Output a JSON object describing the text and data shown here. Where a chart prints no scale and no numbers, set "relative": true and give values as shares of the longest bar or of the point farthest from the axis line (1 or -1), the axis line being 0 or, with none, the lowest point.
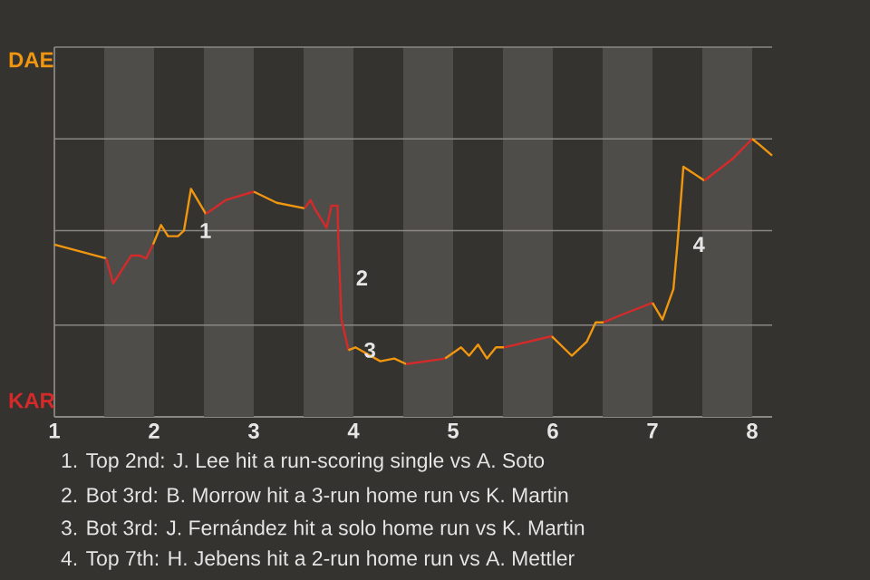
{
  "chart_data": {
    "type": "line",
    "relative": true,
    "xlim": [
      1,
      8.2
    ],
    "xticks": [
      {
        "value": 1,
        "label": "1"
      },
      {
        "value": 2,
        "label": "2"
      },
      {
        "value": 3,
        "label": "3"
      },
      {
        "value": 4,
        "label": "4"
      },
      {
        "value": 5,
        "label": "5"
      },
      {
        "value": 6,
        "label": "6"
      },
      {
        "value": 7,
        "label": "7"
      },
      {
        "value": 8,
        "label": "8"
      }
    ],
    "marker": "none",
    "line_style": "solid",
    "series": [
      {
        "color": "#f0960f",
        "x": [
          1.0,
          1.52
        ],
        "values": [
          0.62,
          0.57
        ]
      },
      {
        "color": "#d42a2a",
        "x": [
          1.52,
          1.59,
          1.77,
          1.86,
          1.92,
          1.99
        ],
        "values": [
          0.57,
          0.48,
          0.58,
          0.58,
          0.57,
          0.62
        ]
      },
      {
        "color": "#f0960f",
        "x": [
          1.99,
          2.07,
          2.14,
          2.24,
          2.3,
          2.37,
          2.52
        ],
        "values": [
          0.62,
          0.69,
          0.65,
          0.65,
          0.67,
          0.82,
          0.73
        ]
      },
      {
        "color": "#d42a2a",
        "x": [
          2.52,
          2.72,
          3.0
        ],
        "values": [
          0.73,
          0.78,
          0.81
        ]
      },
      {
        "color": "#f0960f",
        "x": [
          3.0,
          3.23,
          3.51
        ],
        "values": [
          0.81,
          0.77,
          0.75
        ]
      },
      {
        "color": "#d42a2a",
        "x": [
          3.51,
          3.57,
          3.61,
          3.73,
          3.78,
          3.84,
          3.85,
          3.88,
          3.95
        ],
        "values": [
          0.75,
          0.78,
          0.75,
          0.68,
          0.76,
          0.76,
          0.62,
          0.35,
          0.24
        ]
      },
      {
        "color": "#f0960f",
        "x": [
          3.95,
          4.02,
          4.27,
          4.41,
          4.53
        ],
        "values": [
          0.24,
          0.25,
          0.2,
          0.21,
          0.19
        ]
      },
      {
        "color": "#d42a2a",
        "x": [
          4.53,
          4.92
        ],
        "values": [
          0.19,
          0.21
        ]
      },
      {
        "color": "#f0960f",
        "x": [
          4.92,
          5.08,
          5.16,
          5.25,
          5.34,
          5.43,
          5.51
        ],
        "values": [
          0.21,
          0.25,
          0.22,
          0.26,
          0.21,
          0.25,
          0.25
        ]
      },
      {
        "color": "#d42a2a",
        "x": [
          5.51,
          5.99
        ],
        "values": [
          0.25,
          0.29
        ]
      },
      {
        "color": "#f0960f",
        "x": [
          5.99,
          6.19,
          6.34,
          6.43,
          6.51
        ],
        "values": [
          0.29,
          0.22,
          0.27,
          0.34,
          0.34
        ]
      },
      {
        "color": "#d42a2a",
        "x": [
          6.51,
          6.71,
          7.0
        ],
        "values": [
          0.34,
          0.37,
          0.41
        ]
      },
      {
        "color": "#f0960f",
        "x": [
          7.0,
          7.1,
          7.21,
          7.25,
          7.31,
          7.52
        ],
        "values": [
          0.41,
          0.35,
          0.46,
          0.62,
          0.9,
          0.85
        ]
      },
      {
        "color": "#d42a2a",
        "x": [
          7.52,
          7.81,
          8.0
        ],
        "values": [
          0.85,
          0.93,
          1
        ]
      },
      {
        "color": "#f0960f",
        "x": [
          8.0,
          8.07,
          8.2
        ],
        "values": [
          1,
          0.98,
          0.94
        ]
      }
    ],
    "ref_lines": [
      {
        "axis": "y",
        "value": 0.33,
        "color": "#8a8884"
      },
      {
        "axis": "y",
        "value": 0.67,
        "color": "#8a8884"
      },
      {
        "axis": "y",
        "value": 1,
        "color": "#8a8884"
      },
      {
        "axis": "y",
        "value": 1.33,
        "color": "#8a8884"
      }
    ],
    "bands": [
      {
        "axis": "x",
        "from": 1.5,
        "to": 2,
        "color": "#4f4d4a"
      },
      {
        "axis": "x",
        "from": 2.5,
        "to": 3,
        "color": "#4f4d4a"
      },
      {
        "axis": "x",
        "from": 3.5,
        "to": 4,
        "color": "#4f4d4a"
      },
      {
        "axis": "x",
        "from": 4.5,
        "to": 5,
        "color": "#4f4d4a"
      },
      {
        "axis": "x",
        "from": 5.5,
        "to": 6,
        "color": "#4f4d4a"
      },
      {
        "axis": "x",
        "from": 6.5,
        "to": 7,
        "color": "#4f4d4a"
      },
      {
        "axis": "x",
        "from": 7.5,
        "to": 8,
        "color": "#4f4d4a"
      }
    ],
    "annotations": [
      "DAE",
      "KAR",
      {
        "text": "1",
        "x": 2.3,
        "y": 0.67
      },
      {
        "text": "2",
        "x": 3.87,
        "y": 0.5
      },
      {
        "text": "3",
        "x": 3.95,
        "y": 0.24
      },
      {
        "text": "4",
        "x": 7.25,
        "y": 0.62
      },
      "1. Top 2nd: J. Lee hit a run-scoring single vs A. Soto",
      "2. Bot 3rd: B. Morrow hit a 3-run home run vs K. Martin",
      "3. Bot 3rd: J. Fernández hit a solo home run vs K. Martin",
      "4. Top 7th: H. Jebens hit a 2-run home run vs A. Mettler"
    ]
  }
}
